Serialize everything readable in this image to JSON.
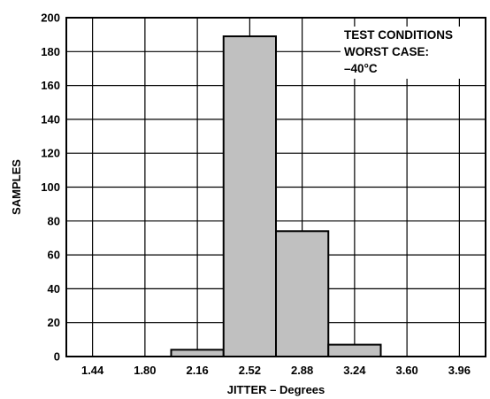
{
  "chart_data": {
    "type": "bar",
    "categories": [
      "1.44",
      "1.80",
      "2.16",
      "2.52",
      "2.88",
      "3.24",
      "3.60",
      "3.96"
    ],
    "values": [
      0,
      0,
      4,
      189,
      74,
      7,
      0,
      0
    ],
    "xlabel": "JITTER – Degrees",
    "ylabel": "SAMPLES",
    "ylim": [
      0,
      200
    ],
    "yticks": [
      0,
      20,
      40,
      60,
      80,
      100,
      120,
      140,
      160,
      180,
      200
    ],
    "grid": true,
    "legend": null,
    "annotation": [
      "TEST CONDITIONS",
      "WORST CASE:",
      "–40°C"
    ],
    "colors": {
      "bar_fill": "#c0c0c0",
      "bar_stroke": "#000000",
      "grid": "#000000"
    }
  }
}
